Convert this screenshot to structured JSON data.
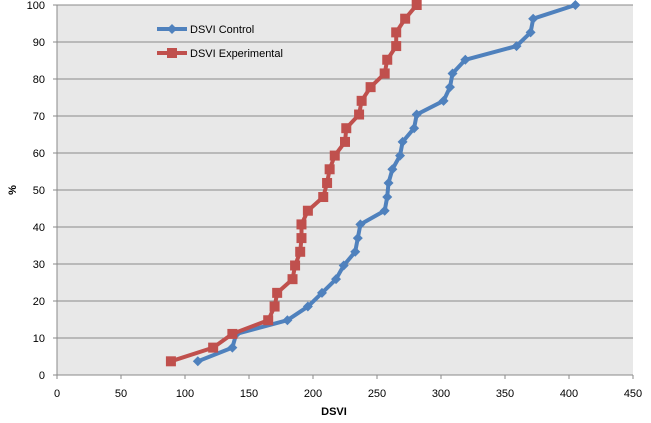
{
  "chart_data": {
    "type": "line",
    "xlabel": "DSVI",
    "ylabel": "%",
    "xlim": [
      0,
      450
    ],
    "ylim": [
      0,
      100
    ],
    "x_ticks": [
      0,
      50,
      100,
      150,
      200,
      250,
      300,
      350,
      400,
      450
    ],
    "y_ticks": [
      0,
      10,
      20,
      30,
      40,
      50,
      60,
      70,
      80,
      90,
      100
    ],
    "grid": "horizontal",
    "plot_background": "#e8e8e8",
    "legend_position": "top-left",
    "series": [
      {
        "name": "DSVI Control",
        "color": "#4f81bd",
        "marker": "diamond",
        "points": [
          [
            110,
            3.7
          ],
          [
            137,
            7.4
          ],
          [
            140,
            11.1
          ],
          [
            180,
            14.8
          ],
          [
            196,
            18.5
          ],
          [
            207,
            22.2
          ],
          [
            218,
            25.9
          ],
          [
            224,
            29.6
          ],
          [
            233,
            33.3
          ],
          [
            235,
            37.0
          ],
          [
            237,
            40.7
          ],
          [
            256,
            44.4
          ],
          [
            258,
            48.1
          ],
          [
            259,
            51.9
          ],
          [
            262,
            55.6
          ],
          [
            268,
            59.3
          ],
          [
            270,
            63.0
          ],
          [
            279,
            66.7
          ],
          [
            281,
            70.4
          ],
          [
            302,
            74.1
          ],
          [
            307,
            77.8
          ],
          [
            309,
            81.5
          ],
          [
            319,
            85.2
          ],
          [
            359,
            88.9
          ],
          [
            370,
            92.6
          ],
          [
            372,
            96.3
          ],
          [
            405,
            100
          ]
        ]
      },
      {
        "name": "DSVI Experimental",
        "color": "#c0504d",
        "marker": "square",
        "points": [
          [
            89,
            3.7
          ],
          [
            122,
            7.4
          ],
          [
            137,
            11.1
          ],
          [
            165,
            14.8
          ],
          [
            170,
            18.5
          ],
          [
            172,
            22.2
          ],
          [
            184,
            25.9
          ],
          [
            186,
            29.6
          ],
          [
            190,
            33.3
          ],
          [
            191,
            37.0
          ],
          [
            191,
            40.7
          ],
          [
            196,
            44.4
          ],
          [
            208,
            48.1
          ],
          [
            211,
            51.9
          ],
          [
            213,
            55.6
          ],
          [
            217,
            59.3
          ],
          [
            225,
            63.0
          ],
          [
            226,
            66.7
          ],
          [
            236,
            70.4
          ],
          [
            238,
            74.1
          ],
          [
            245,
            77.8
          ],
          [
            256,
            81.5
          ],
          [
            258,
            85.2
          ],
          [
            265,
            88.9
          ],
          [
            265,
            92.6
          ],
          [
            272,
            96.3
          ],
          [
            281,
            100
          ]
        ]
      }
    ]
  }
}
